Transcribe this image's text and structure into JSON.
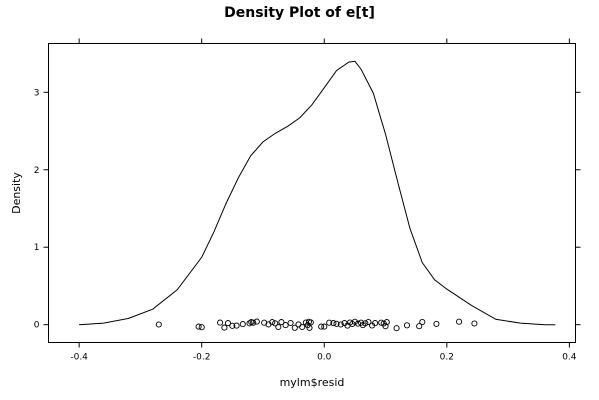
{
  "chart_data": {
    "type": "line",
    "title": "Density Plot of e[t]",
    "xlabel": "mylm$resid",
    "ylabel": "Density",
    "xlim": [
      -0.45,
      0.41
    ],
    "ylim": [
      -0.23,
      3.63
    ],
    "xticks": [
      -0.4,
      -0.2,
      0.0,
      0.2,
      0.4
    ],
    "xtick_labels": [
      "-0.4",
      "-0.2",
      "0.0",
      "0.2",
      "0.4"
    ],
    "yticks": [
      0,
      1,
      2,
      3
    ],
    "ytick_labels": [
      "0",
      "1",
      "2",
      "3"
    ],
    "grid": false,
    "series": [
      {
        "kind": "density-curve",
        "x": [
          -0.4,
          -0.36,
          -0.32,
          -0.28,
          -0.24,
          -0.2,
          -0.18,
          -0.16,
          -0.14,
          -0.12,
          -0.1,
          -0.08,
          -0.06,
          -0.04,
          -0.02,
          0.0,
          0.02,
          0.04,
          0.05,
          0.06,
          0.08,
          0.1,
          0.12,
          0.14,
          0.16,
          0.18,
          0.2,
          0.24,
          0.28,
          0.32,
          0.36,
          0.377
        ],
        "y": [
          0.0,
          0.02,
          0.08,
          0.2,
          0.45,
          0.87,
          1.2,
          1.57,
          1.9,
          2.18,
          2.36,
          2.47,
          2.56,
          2.67,
          2.84,
          3.06,
          3.28,
          3.39,
          3.4,
          3.3,
          2.99,
          2.46,
          1.84,
          1.24,
          0.8,
          0.58,
          0.46,
          0.25,
          0.07,
          0.02,
          0.0,
          0.0
        ]
      },
      {
        "kind": "rug-points",
        "x": [
          -0.27,
          -0.205,
          -0.2,
          -0.17,
          -0.163,
          -0.157,
          -0.15,
          -0.143,
          -0.133,
          -0.122,
          -0.119,
          -0.116,
          -0.11,
          -0.098,
          -0.091,
          -0.085,
          -0.08,
          -0.075,
          -0.07,
          -0.063,
          -0.055,
          -0.048,
          -0.042,
          -0.036,
          -0.03,
          -0.027,
          -0.025,
          -0.024,
          -0.022,
          -0.005,
          0.0,
          0.008,
          0.015,
          0.02,
          0.027,
          0.033,
          0.038,
          0.042,
          0.046,
          0.05,
          0.055,
          0.06,
          0.063,
          0.067,
          0.072,
          0.078,
          0.083,
          0.093,
          0.097,
          0.1,
          0.102,
          0.118,
          0.135,
          0.155,
          0.16,
          0.183,
          0.22,
          0.245
        ],
        "y": [
          0.003,
          -0.025,
          -0.032,
          0.027,
          -0.038,
          0.02,
          -0.015,
          -0.012,
          0.008,
          0.018,
          0.033,
          0.025,
          0.04,
          0.025,
          0.004,
          0.033,
          0.018,
          -0.03,
          0.033,
          -0.005,
          0.022,
          -0.04,
          0.004,
          -0.03,
          0.028,
          -0.005,
          0.037,
          -0.04,
          0.03,
          -0.025,
          -0.025,
          0.025,
          0.02,
          0.012,
          0.003,
          0.021,
          -0.012,
          0.028,
          0.009,
          0.037,
          0.014,
          0.025,
          -0.005,
          0.018,
          0.035,
          -0.01,
          0.02,
          0.025,
          0.015,
          -0.02,
          0.033,
          -0.045,
          -0.008,
          -0.02,
          0.035,
          0.01,
          0.038,
          0.015
        ]
      }
    ]
  }
}
